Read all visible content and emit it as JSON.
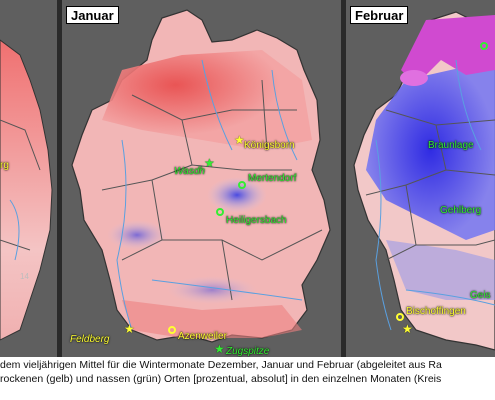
{
  "panels": {
    "dezember": {
      "title": "",
      "labels": {
        "partial": "rg",
        "number": "14"
      }
    },
    "januar": {
      "title": "Januar",
      "dry_places": [
        {
          "name": "Feldberg",
          "italic": true
        },
        {
          "name": "Azenweiler",
          "italic": false
        }
      ],
      "wet_places": [
        {
          "name": "Königsborn",
          "italic": false
        },
        {
          "name": "Wasdh",
          "italic": true
        },
        {
          "name": "Mertendorf",
          "italic": false
        },
        {
          "name": "Heiligersbach",
          "italic": false
        },
        {
          "name": "Zugspitze",
          "italic": true
        }
      ],
      "yellow_labels": [
        "Königsborn"
      ]
    },
    "februar": {
      "title": "Februar",
      "places": [
        {
          "name": "Braunlage",
          "color": "green"
        },
        {
          "name": "Gehlberg",
          "color": "green"
        },
        {
          "name": "Bischoffingen",
          "color": "yellow"
        },
        {
          "name": "Geis",
          "color": "green"
        }
      ]
    }
  },
  "caption": {
    "line1": "dem vieljährigen Mittel für die Wintermonate Dezember, Januar und Februar (abgeleitet aus Ra",
    "line2": "rockenen (gelb) und nassen (grün) Orten [prozentual, absolut] in den einzelnen Monaten (Kreis"
  },
  "colors": {
    "dry_marker": "#ffff33",
    "wet_marker": "#33ee33",
    "drier_than_mean": "#e63a3a",
    "wetter_than_mean": "#1a1ae6",
    "border": "#333333"
  }
}
